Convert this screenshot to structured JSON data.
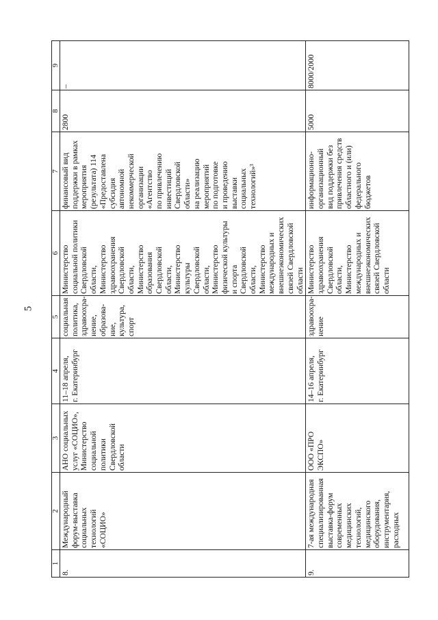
{
  "page_number": "5",
  "header": [
    "1",
    "2",
    "3",
    "4",
    "5",
    "6",
    "7",
    "8",
    "9"
  ],
  "rows": [
    {
      "num": "8.",
      "name": "Международный\nфорум-выставка\nсоциальных\nтехнологий\n«СОЦИО»",
      "organizer": "АНО социальных\nуслуг «СОЦИО»,\nМинистерство\nсоциальной\nполитики\nСвердловской\nобласти",
      "date_place": "11–18 апреля,\nг. Екатеринбург",
      "sector": "социальная\nполитика,\nздравоохра-\nнение,\nобразова-\nние,\nкультура,\nспорт",
      "responsible": "Министерство\nсоциальной политики\nСвердловской\nобласти,\nМинистерство\nздравоохранения\nСвердловской\nобласти,\nМинистерство\nобразования\nСвердловской\nобласти,\nМинистерство\nкультуры\nСвердловской\nобласти,\nМинистерство\nфизической культуры\nи спорта\nСвердловской\nобласти,\nМинистерство\nмеждународных и\nвнешнеэкономических\nсвязей Свердловской\nобласти",
      "support": "финансовый вид\nподдержки в рамках\nмероприятия\n(результата) 114\n«Предоставлена\nсубсидия\nавтономной\nнекоммерческой\nорганизации\n«Агентство\nпо привлечению\nинвестиций\nСвердловской\nобласти»\nна реализацию\nмероприятий\nпо подготовке\nи проведению\nвыставки\nсоциальных\nтехнологий»³",
      "col8": "2800",
      "col9": "–"
    },
    {
      "num": "9.",
      "name": "7-ая международная\nспециализированная\nвыставка-форум\nсовременных\nмедицинских\nтехнологий,\nмедицинского\nоборудования,\nинструментария,\nрасходных",
      "organizer": "ООО «ПРО\nЭКСПО»",
      "date_place": "14–16 апреля,\nг. Екатеринбург",
      "sector": "здравоохра-\nнение",
      "responsible": "Министерство\nздравоохранения\nСвердловской\nобласти,\nМинистерство\nмеждународных и\nвнешнеэкономических\nсвязей Свердловской\nобласти",
      "support": "информационно-\nорганизационный\nвид поддержки без\nпривлечения средств\nобластного и (или)\nфедерального\nбюджетов",
      "col8": "5000",
      "col9": "8000/2000"
    }
  ]
}
